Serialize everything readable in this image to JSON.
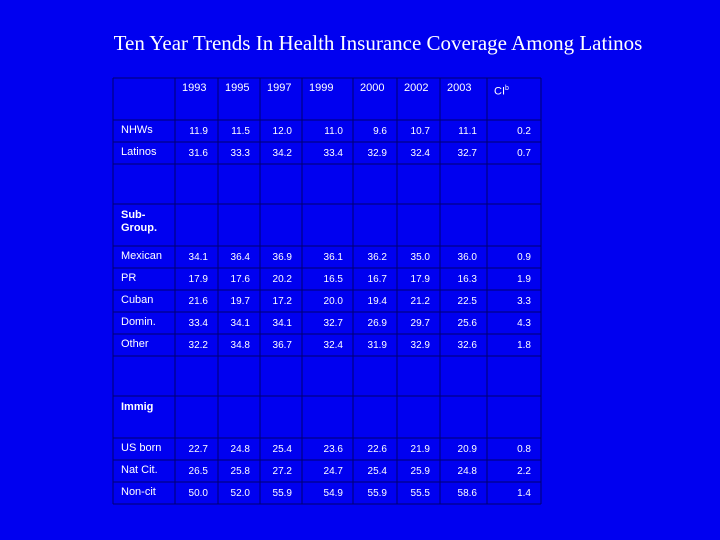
{
  "title": "Ten Year Trends In Health Insurance Coverage Among Latinos",
  "table": {
    "columns": [
      "1993",
      "1995",
      "1997",
      "1999",
      "2000",
      "2002",
      "2003",
      "CI"
    ],
    "ci_superscript": "b",
    "groups": [
      {
        "rows": [
          {
            "label": "NHWs",
            "values": [
              "11.9",
              "11.5",
              "12.0",
              "11.0",
              "9.6",
              "10.7",
              "11.1",
              "0.2"
            ]
          },
          {
            "label": "Latinos",
            "values": [
              "31.6",
              "33.3",
              "34.2",
              "33.4",
              "32.9",
              "32.4",
              "32.7",
              "0.7"
            ]
          }
        ]
      },
      {
        "label": "Sub-Group.",
        "rows": [
          {
            "label": "Mexican",
            "values": [
              "34.1",
              "36.4",
              "36.9",
              "36.1",
              "36.2",
              "35.0",
              "36.0",
              "0.9"
            ]
          },
          {
            "label": "PR",
            "values": [
              "17.9",
              "17.6",
              "20.2",
              "16.5",
              "16.7",
              "17.9",
              "16.3",
              "1.9"
            ]
          },
          {
            "label": "Cuban",
            "values": [
              "21.6",
              "19.7",
              "17.2",
              "20.0",
              "19.4",
              "21.2",
              "22.5",
              "3.3"
            ]
          },
          {
            "label": "Domin.",
            "values": [
              "33.4",
              "34.1",
              "34.1",
              "32.7",
              "26.9",
              "29.7",
              "25.6",
              "4.3"
            ]
          },
          {
            "label": "Other",
            "values": [
              "32.2",
              "34.8",
              "36.7",
              "32.4",
              "31.9",
              "32.9",
              "32.6",
              "1.8"
            ]
          }
        ]
      },
      {
        "label": "Immig",
        "rows": [
          {
            "label": "US born",
            "values": [
              "22.7",
              "24.8",
              "25.4",
              "23.6",
              "22.6",
              "21.9",
              "20.9",
              "0.8"
            ]
          },
          {
            "label": "Nat Cit.",
            "values": [
              "26.5",
              "25.8",
              "27.2",
              "24.7",
              "25.4",
              "25.9",
              "24.8",
              "2.2"
            ]
          },
          {
            "label": "Non-cit",
            "values": [
              "50.0",
              "52.0",
              "55.9",
              "54.9",
              "55.9",
              "55.5",
              "58.6",
              "1.4"
            ]
          }
        ]
      }
    ]
  }
}
